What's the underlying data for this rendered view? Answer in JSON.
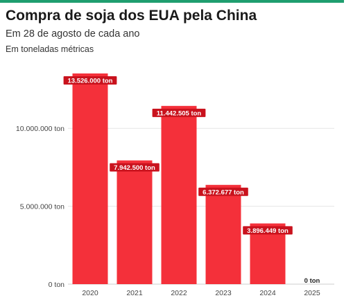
{
  "header": {
    "title": "Compra de soja dos EUA pela China",
    "subtitle": "Em 28 de agosto de cada ano",
    "note": "Em toneladas métricas"
  },
  "colors": {
    "bar": "#f4303a",
    "label_bg": "#c9121d",
    "accent_line": "#1f9e6f",
    "grid": "#e6e6e6"
  },
  "chart_data": {
    "type": "bar",
    "categories": [
      "2020",
      "2021",
      "2022",
      "2023",
      "2024",
      "2025"
    ],
    "values": [
      13526000,
      7942500,
      11442505,
      6372677,
      3896449,
      0
    ],
    "data_labels": [
      "13.526.000 ton",
      "7.942.500 ton",
      "11.442.505 ton",
      "6.372.677 ton",
      "3.896.449 ton",
      "0 ton"
    ],
    "y_ticks": [
      0,
      5000000,
      10000000
    ],
    "y_tick_labels": [
      "0 ton",
      "5.000.000 ton",
      "10.000.000 ton"
    ],
    "title": "Compra de soja dos EUA pela China",
    "subtitle": "Em 28 de agosto de cada ano",
    "ylabel": "Em toneladas métricas",
    "ylim": [
      0,
      13526000
    ],
    "grid": true
  }
}
